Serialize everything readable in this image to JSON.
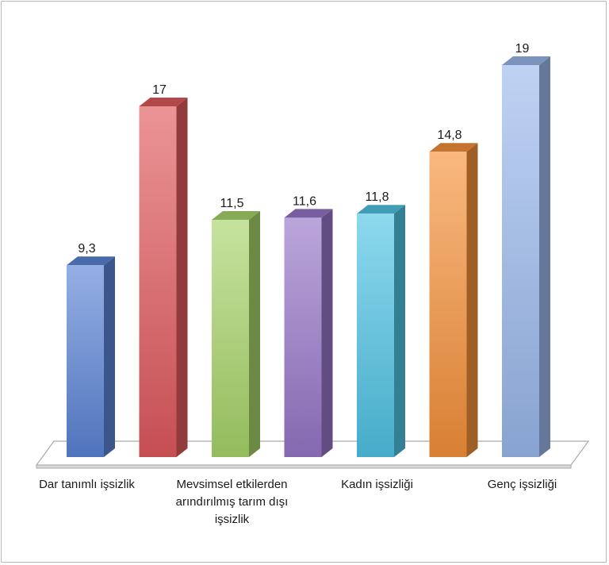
{
  "chart_data": {
    "type": "bar",
    "style": "3d-column",
    "categories": [
      "Dar tanımlı işsizlik",
      "",
      "Mevsimsel etkilerden arındırılmış tarım dışı işsizlik",
      "",
      "Kadın işsizliği",
      "",
      "Genç işsizliği"
    ],
    "values": [
      9.3,
      17,
      11.5,
      11.6,
      11.8,
      14.8,
      19
    ],
    "value_labels": [
      "9,3",
      "17",
      "11,5",
      "11,6",
      "11,8",
      "14,8",
      "19"
    ],
    "colors": [
      "#5b84d6",
      "#e05a5e",
      "#a8d46a",
      "#9676c8",
      "#4fc4e4",
      "#f5913a",
      "#9bb9ec"
    ],
    "ylim": [
      0,
      19
    ],
    "grid": false,
    "legend": "none"
  }
}
